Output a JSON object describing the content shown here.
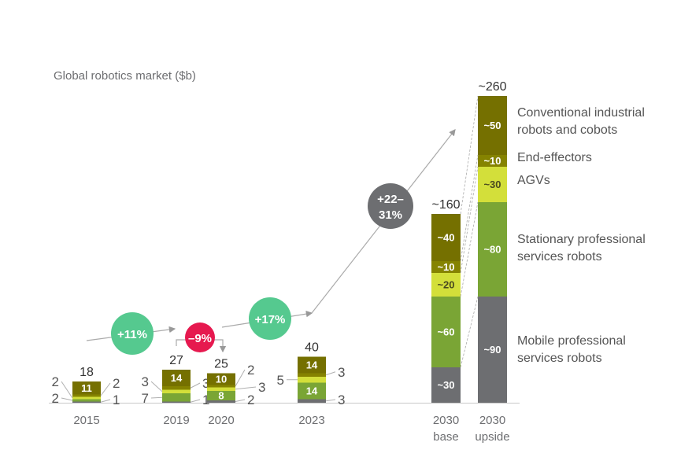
{
  "chart_data": {
    "type": "bar",
    "stacked": true,
    "title": "Global robotics market ($b)",
    "categories": [
      "2015",
      "2019",
      "2020",
      "2023",
      "2030 base",
      "2030 upside"
    ],
    "category_lines": [
      [
        "2015"
      ],
      [
        "2019"
      ],
      [
        "2020"
      ],
      [
        "2023"
      ],
      [
        "2030",
        "base"
      ],
      [
        "2030",
        "upside"
      ]
    ],
    "totals": [
      "18",
      "27",
      "25",
      "40",
      "~160",
      "~260"
    ],
    "series": [
      {
        "name": "Mobile professional services robots",
        "legend_lines": [
          "Mobile professional",
          "services robots"
        ],
        "color": "#6d6e71",
        "values": [
          1,
          1,
          2,
          3,
          30,
          90
        ],
        "labels": [
          "1",
          "1",
          "2",
          "3",
          "~30",
          "~90"
        ]
      },
      {
        "name": "Stationary professional services robots",
        "legend_lines": [
          "Stationary professional",
          "services robots"
        ],
        "color": "#7aa535",
        "values": [
          2,
          7,
          8,
          14,
          60,
          80
        ],
        "labels": [
          "2",
          "7",
          "8",
          "14",
          "~60",
          "~80"
        ]
      },
      {
        "name": "AGVs",
        "legend_lines": [
          "AGVs"
        ],
        "color": "#d3df3a",
        "values": [
          2,
          3,
          3,
          5,
          20,
          30
        ],
        "labels": [
          "2",
          "3",
          "3",
          "5",
          "~20",
          "~30"
        ]
      },
      {
        "name": "End-effectors",
        "legend_lines": [
          "End-effectors"
        ],
        "color": "#858300",
        "values": [
          2,
          3,
          2,
          3,
          10,
          10
        ],
        "labels": [
          "2",
          "3",
          "2",
          "3",
          "~10",
          "~10"
        ]
      },
      {
        "name": "Conventional industrial robots and cobots",
        "legend_lines": [
          "Conventional industrial",
          "robots and cobots"
        ],
        "color": "#757000",
        "values": [
          11,
          14,
          10,
          14,
          40,
          50
        ],
        "labels": [
          "11",
          "14",
          "10",
          "14",
          "~40",
          "~50"
        ]
      }
    ],
    "growth_annotations": [
      {
        "label": "+11%",
        "period": "2015-2019",
        "color": "#55c98f"
      },
      {
        "label": "–9%",
        "period": "2019-2020",
        "color": "#e6194f"
      },
      {
        "label": "+17%",
        "period": "2020-2023",
        "color": "#55c98f"
      },
      {
        "label_lines": [
          "+22–",
          "31%"
        ],
        "period": "2023-2030",
        "color": "#6d6e71"
      }
    ],
    "legend_placement": "right",
    "grid": false
  }
}
